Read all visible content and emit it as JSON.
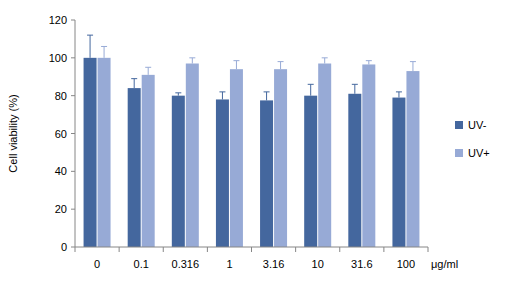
{
  "chart_data": {
    "type": "bar",
    "y_label": "Cell viability (%)",
    "x_label": "μg/ml",
    "categories": [
      "0",
      "0.1",
      "0.316",
      "1",
      "3.16",
      "10",
      "31.6",
      "100"
    ],
    "series": [
      {
        "name": "UV-",
        "color": "#44679e",
        "values": [
          100,
          84,
          80,
          78,
          77.5,
          80,
          81,
          79
        ],
        "errors": [
          12,
          5,
          1.5,
          4,
          4.5,
          6,
          5,
          3
        ]
      },
      {
        "name": "UV+",
        "color": "#97aad6",
        "values": [
          100,
          91,
          97,
          94,
          94,
          97,
          96.5,
          93
        ],
        "errors": [
          6,
          4,
          3,
          4.5,
          4,
          3,
          2,
          5
        ]
      }
    ],
    "ylim": [
      0,
      120
    ],
    "yticks": [
      0,
      20,
      40,
      60,
      80,
      100,
      120
    ],
    "grid": false,
    "legend": "right"
  }
}
